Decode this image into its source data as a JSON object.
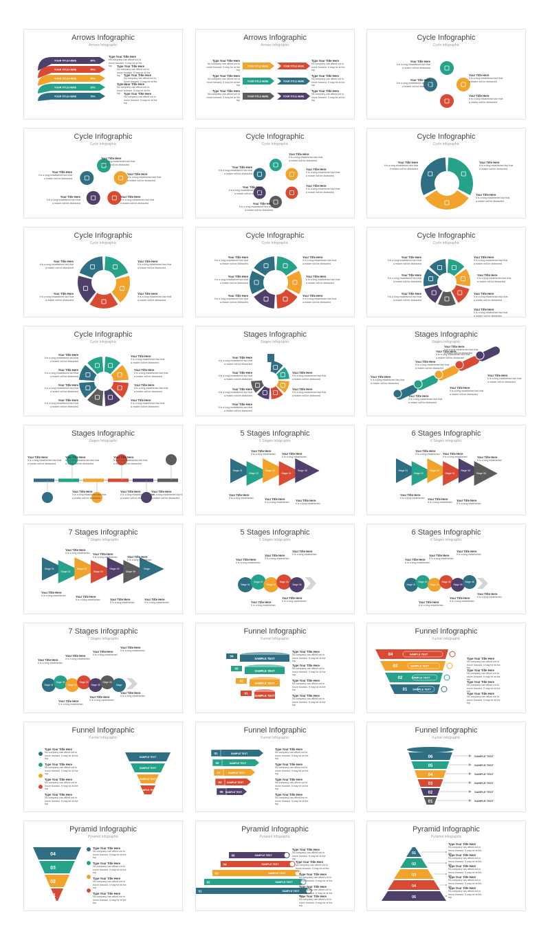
{
  "slides": [
    {
      "title": "Arrows Infographic",
      "subtitle": "Arrows Infographic"
    },
    {
      "title": "Arrows Infographic",
      "subtitle": "Arrows Infographic"
    },
    {
      "title": "Cycle Infographic",
      "subtitle": "Cycle Infographic"
    },
    {
      "title": "Cycle Infographic",
      "subtitle": "Cycle Infographic"
    },
    {
      "title": "Cycle Infographic",
      "subtitle": "Cycle Infographic"
    },
    {
      "title": "Cycle Infographic",
      "subtitle": "Cycle Infographic"
    },
    {
      "title": "Cycle Infographic",
      "subtitle": "Cycle Infographic"
    },
    {
      "title": "Cycle Infographic",
      "subtitle": "Cycle Infographic"
    },
    {
      "title": "Cycle Infographic",
      "subtitle": "Cycle Infographic"
    },
    {
      "title": "Cycle Infographic",
      "subtitle": "Cycle Infographic"
    },
    {
      "title": "Stages Infographic",
      "subtitle": "Stages Infographic"
    },
    {
      "title": "Stages Infographic",
      "subtitle": "Stages Infographic"
    },
    {
      "title": "Stages Infographic",
      "subtitle": "Stages Infographic"
    },
    {
      "title": "5 Stages Infographic",
      "subtitle": "5 Stages Infographic"
    },
    {
      "title": "6 Stages Infographic",
      "subtitle": "6 Stages Infographic"
    },
    {
      "title": "7 Stages Infographic",
      "subtitle": "7 Stages Infographic"
    },
    {
      "title": "5 Stages Infographic",
      "subtitle": "5 Stages Infographic"
    },
    {
      "title": "6 Stages Infographic",
      "subtitle": "6 Stages Infographic"
    },
    {
      "title": "7 Stages Infographic",
      "subtitle": "7 Stages Infographic"
    },
    {
      "title": "Funnel Infographic",
      "subtitle": "Funnel Infographic"
    },
    {
      "title": "Funnel Infographic",
      "subtitle": "Funnel Infographic"
    },
    {
      "title": "Funnel Infographic",
      "subtitle": "Funnel Infographic"
    },
    {
      "title": "Funnel Infographic",
      "subtitle": "Funnel Infographic"
    },
    {
      "title": "Funnel Infographic",
      "subtitle": "Funnel Infographic"
    },
    {
      "title": "Pyramid Infographic",
      "subtitle": "Pyramid Infographic"
    },
    {
      "title": "Pyramid Infographic",
      "subtitle": "Pyramid Infographic"
    },
    {
      "title": "Pyramid Infographic",
      "subtitle": "Pyramid Infographic"
    }
  ],
  "labels": {
    "your_title_here": "Your Title Here",
    "type_your_title_here": "Type Your Title Here",
    "your_title_here_caps": "YOUR TITLE HERE",
    "sample_text": "SAMPLE TEXT",
    "long_text": "It is a long established fact that a reader will be distracted",
    "short_text": "It is a long established",
    "company_text": "No company can afford not to move forward. It may be at the top",
    "stage_prefix": "Stage"
  },
  "arrows_percent": [
    "90%",
    "40%",
    "50%",
    "20%",
    "70%"
  ],
  "numbers": [
    "01",
    "02",
    "03",
    "04",
    "05",
    "06"
  ],
  "colors": {
    "purple": "#4f3f6b",
    "red": "#d94a35",
    "orange": "#f2a32c",
    "green": "#27a28a",
    "teal": "#2f6f84",
    "gray": "#5c5c5c",
    "title": "#444444"
  }
}
